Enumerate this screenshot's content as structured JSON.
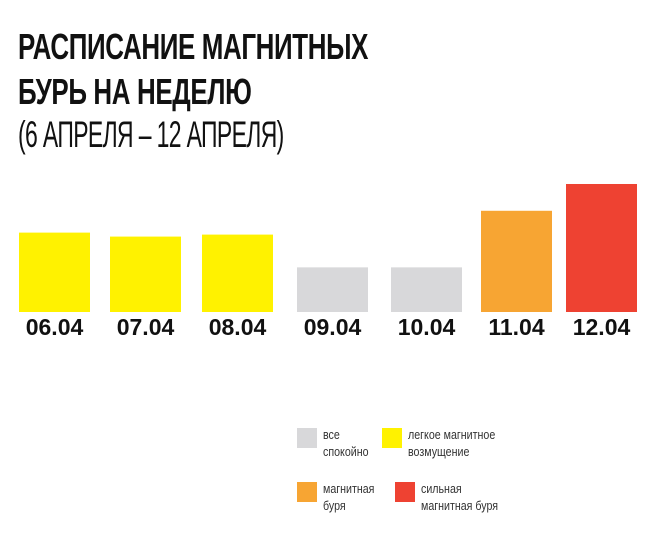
{
  "title_line1": "РАСПИСАНИЕ МАГНИТНЫХ",
  "title_line2": "БУРЬ НА НЕДЕЛЮ",
  "subtitle": "(6 АПРЕЛЯ – 12 АПРЕЛЯ)",
  "colors": {
    "light": "#FFF200",
    "calm": "#D8D8DA",
    "storm": "#F7A533",
    "strong": "#EE4232"
  },
  "chart_data": {
    "type": "bar",
    "title": "Расписание магнитных бурь на неделю (6 апреля – 12 апреля)",
    "categories": [
      "06.04",
      "07.04",
      "08.04",
      "09.04",
      "10.04",
      "11.04",
      "12.04"
    ],
    "values": [
      80,
      76,
      78,
      45,
      45,
      102,
      129
    ],
    "levels": [
      "light",
      "light",
      "light",
      "calm",
      "calm",
      "storm",
      "strong"
    ],
    "ylim": [
      0,
      130
    ],
    "grid": false,
    "xlabel": "",
    "ylabel": "",
    "legend_placement": "bottom-right"
  },
  "legend": [
    {
      "key": "calm",
      "line1": "все",
      "line2": "спокойно"
    },
    {
      "key": "light",
      "line1": "легкое магнитное",
      "line2": "возмущение"
    },
    {
      "key": "storm",
      "line1": "магнитная",
      "line2": "буря"
    },
    {
      "key": "strong",
      "line1": "сильная",
      "line2": "магнитная буря"
    }
  ]
}
